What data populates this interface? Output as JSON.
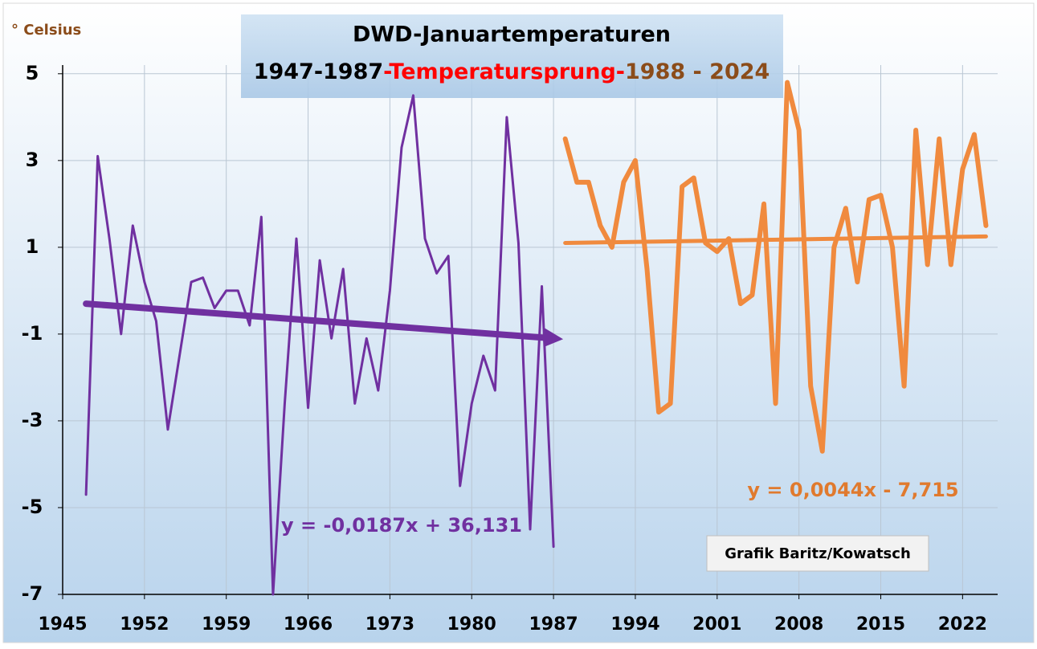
{
  "chart_data": {
    "type": "line",
    "title": "DWD-Januartemperaturen",
    "subtitle_parts": [
      {
        "text": "1947-1987",
        "color": "#000000"
      },
      {
        "text": "-Temperatursprung-",
        "color": "#ff0000"
      },
      {
        "text": "1988 - 2024",
        "color": "#8b4c1a"
      }
    ],
    "ylabel": "° Celsius",
    "annotations": [
      {
        "text": "y = -0,0187x + 36,131",
        "color": "#7030a0"
      },
      {
        "text": "y = 0,0044x - 7,715",
        "color": "#e07a2e"
      },
      {
        "text": "Grafik Baritz/Kowatsch",
        "color": "#000000"
      }
    ],
    "series": [
      {
        "color": "#7030a0",
        "width": 3,
        "x": [
          1947,
          1948,
          1949,
          1950,
          1951,
          1952,
          1953,
          1954,
          1955,
          1956,
          1957,
          1958,
          1959,
          1960,
          1961,
          1962,
          1963,
          1964,
          1965,
          1966,
          1967,
          1968,
          1969,
          1970,
          1971,
          1972,
          1973,
          1974,
          1975,
          1976,
          1977,
          1978,
          1979,
          1980,
          1981,
          1982,
          1983,
          1984,
          1985,
          1986,
          1987
        ],
        "values": [
          -4.7,
          3.1,
          1.2,
          -1.0,
          1.5,
          0.2,
          -0.7,
          -3.2,
          -1.5,
          0.2,
          0.3,
          -0.4,
          0.0,
          0.0,
          -0.8,
          1.7,
          -7.0,
          -2.6,
          1.2,
          -2.7,
          0.7,
          -1.1,
          0.5,
          -2.6,
          -1.1,
          -2.3,
          0.0,
          3.3,
          4.5,
          1.2,
          0.4,
          0.8,
          -4.5,
          -2.6,
          -1.5,
          -2.3,
          4.0,
          1.1,
          -5.5,
          0.1,
          -5.9
        ]
      },
      {
        "color": "#f08a3e",
        "width": 6,
        "x": [
          1988,
          1989,
          1990,
          1991,
          1992,
          1993,
          1994,
          1995,
          1996,
          1997,
          1998,
          1999,
          2000,
          2001,
          2002,
          2003,
          2004,
          2005,
          2006,
          2007,
          2008,
          2009,
          2010,
          2011,
          2012,
          2013,
          2014,
          2015,
          2016,
          2017,
          2018,
          2019,
          2020,
          2021,
          2022,
          2023,
          2024
        ],
        "values": [
          3.5,
          2.5,
          2.5,
          1.5,
          1.0,
          2.5,
          3.0,
          0.5,
          -2.8,
          -2.6,
          2.4,
          2.6,
          1.1,
          0.9,
          1.2,
          -0.3,
          -0.1,
          2.0,
          -2.6,
          4.8,
          3.7,
          -2.2,
          -3.7,
          1.0,
          1.9,
          0.2,
          2.1,
          2.2,
          1.0,
          -2.2,
          3.7,
          0.6,
          3.5,
          0.6,
          2.8,
          3.6,
          1.5
        ]
      },
      {
        "color": "#7030a0",
        "width": 8,
        "arrow": true,
        "x": [
          1947,
          1987
        ],
        "values": [
          -0.3,
          -1.1
        ]
      },
      {
        "color": "#f08a3e",
        "width": 5,
        "x": [
          1988,
          2024
        ],
        "values": [
          1.1,
          1.25
        ]
      }
    ],
    "xlim": [
      1945,
      2025
    ],
    "ylim": [
      -7,
      5.2
    ],
    "xticks": [
      1945,
      1952,
      1959,
      1966,
      1973,
      1980,
      1987,
      1994,
      2001,
      2008,
      2015,
      2022
    ],
    "yticks": [
      -7,
      -5,
      -3,
      -1,
      1,
      3,
      5
    ],
    "grid": true
  }
}
